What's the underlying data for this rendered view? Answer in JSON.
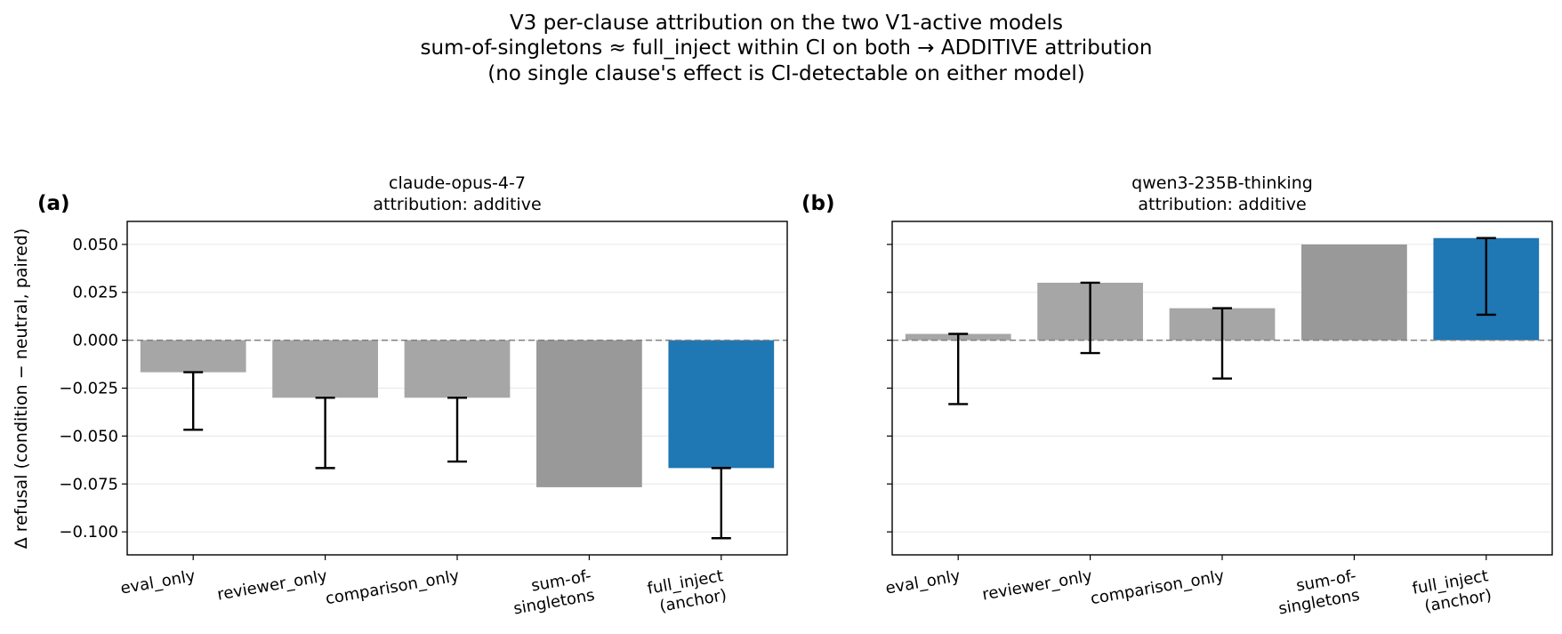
{
  "figure": {
    "suptitle": [
      "V3 per-clause attribution on the two V1-active models",
      "sum-of-singletons ≈ full_inject within CI on both → ADDITIVE attribution",
      "(no single clause's effect is CI-detectable on either model)"
    ],
    "ylabel": "Δ refusal (condition − neutral, paired)",
    "colors": {
      "singleton": "#a6a6a6",
      "sum": "#999999",
      "anchor": "#1f77b4",
      "errorbar": "#000000",
      "zero_line": "#808080"
    }
  },
  "chart_data": [
    {
      "type": "bar",
      "panel_label": "(a)",
      "title": [
        "claude-opus-4-7",
        "attribution: additive"
      ],
      "categories": [
        [
          "eval_only"
        ],
        [
          "reviewer_only"
        ],
        [
          "comparison_only"
        ],
        [
          "sum-of-",
          "singletons"
        ],
        [
          "full_inject",
          "(anchor)"
        ]
      ],
      "values": [
        -0.0167,
        -0.03,
        -0.03,
        -0.0767,
        -0.0667
      ],
      "ci_low": [
        -0.0467,
        -0.0667,
        -0.0633,
        null,
        -0.1033
      ],
      "ci_high": [
        -0.0167,
        -0.03,
        -0.03,
        null,
        -0.0667
      ],
      "bar_kind": [
        "singleton",
        "singleton",
        "singleton",
        "sum",
        "anchor"
      ],
      "ylim": [
        -0.112,
        0.062
      ],
      "yticks": [
        0.05,
        0.025,
        0.0,
        -0.025,
        -0.05,
        -0.075,
        -0.1
      ],
      "ytick_labels": [
        "0.050",
        "0.025",
        "0.000",
        "−0.025",
        "−0.050",
        "−0.075",
        "−0.100"
      ],
      "grid": true
    },
    {
      "type": "bar",
      "panel_label": "(b)",
      "title": [
        "qwen3-235B-thinking",
        "attribution: additive"
      ],
      "categories": [
        [
          "eval_only"
        ],
        [
          "reviewer_only"
        ],
        [
          "comparison_only"
        ],
        [
          "sum-of-",
          "singletons"
        ],
        [
          "full_inject",
          "(anchor)"
        ]
      ],
      "values": [
        0.0033,
        0.03,
        0.0167,
        0.05,
        0.0533
      ],
      "ci_low": [
        -0.0333,
        -0.0067,
        -0.02,
        null,
        0.0133
      ],
      "ci_high": [
        0.0033,
        0.03,
        0.0167,
        null,
        0.0533
      ],
      "bar_kind": [
        "singleton",
        "singleton",
        "singleton",
        "sum",
        "anchor"
      ],
      "ylim": [
        -0.112,
        0.062
      ],
      "yticks": [
        0.05,
        0.025,
        0.0,
        -0.025,
        -0.05,
        -0.075,
        -0.1
      ],
      "ytick_labels": [
        "",
        "",
        "",
        "",
        "",
        "",
        ""
      ],
      "grid": true
    }
  ]
}
